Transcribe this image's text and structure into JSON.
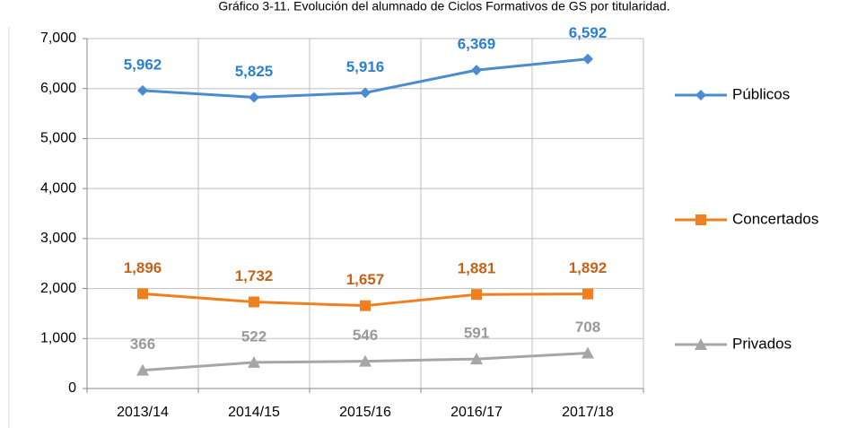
{
  "chart_data": {
    "type": "line",
    "title": "Gráfico 3-11. Evolución del alumnado de Ciclos Formativos de GS por titularidad.",
    "categories": [
      "2013/14",
      "2014/15",
      "2015/16",
      "2016/17",
      "2017/18"
    ],
    "series": [
      {
        "name": "Públicos",
        "color": "#4a8ccf",
        "label_color": "#2e7fd0",
        "marker": "diamond",
        "values": [
          5962,
          5825,
          5916,
          6369,
          6592
        ],
        "value_labels": [
          "5,962",
          "5,825",
          "5,916",
          "6,369",
          "6,592"
        ]
      },
      {
        "name": "Concertados",
        "color": "#f07f1f",
        "label_color": "#c5621a",
        "marker": "square",
        "values": [
          1896,
          1732,
          1657,
          1881,
          1892
        ],
        "value_labels": [
          "1,896",
          "1,732",
          "1,657",
          "1,881",
          "1,892"
        ]
      },
      {
        "name": "Privados",
        "color": "#a6a6a6",
        "label_color": "#9a9a9a",
        "marker": "triangle",
        "values": [
          366,
          522,
          546,
          591,
          708
        ],
        "value_labels": [
          "366",
          "522",
          "546",
          "591",
          "708"
        ]
      }
    ],
    "ylim": [
      0,
      7000
    ],
    "yticks": [
      0,
      {
        "value": 1000,
        "label": "1,000"
      },
      {
        "value": 2000,
        "label": "2,000"
      },
      {
        "value": 3000,
        "label": "3,000"
      },
      {
        "value": 4000,
        "label": "4,000"
      },
      {
        "value": 5000,
        "label": "5,000"
      },
      {
        "value": 6000,
        "label": "6,000"
      },
      {
        "value": 7000,
        "label": "7,000"
      }
    ],
    "grid": true,
    "legend": "right"
  }
}
